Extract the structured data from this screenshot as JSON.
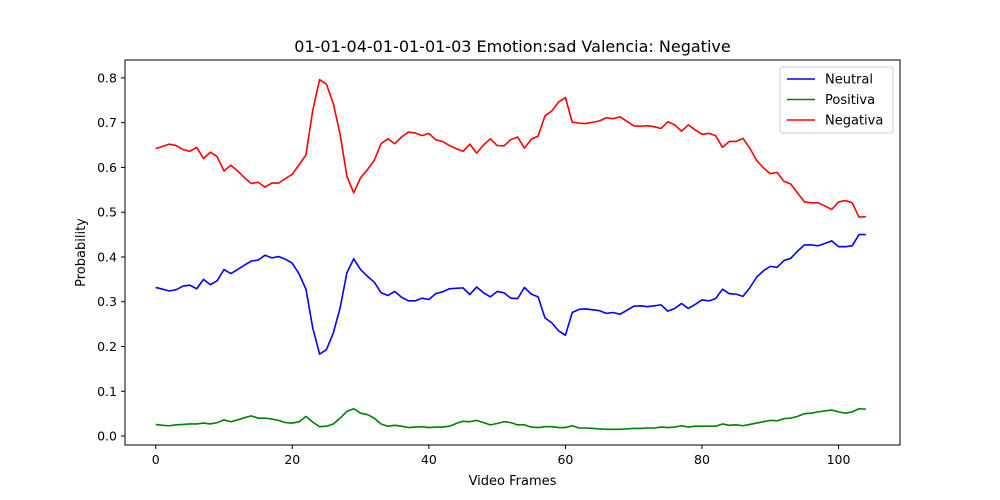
{
  "chart_data": {
    "type": "line",
    "title": "01-01-04-01-01-01-03 Emotion:sad Valencia: Negative",
    "xlabel": "Video Frames",
    "ylabel": "Probability",
    "xlim": [
      -4.5,
      109
    ],
    "ylim": [
      -0.02,
      0.84
    ],
    "xticks": [
      0,
      20,
      40,
      60,
      80,
      100
    ],
    "yticks": [
      0.0,
      0.1,
      0.2,
      0.3,
      0.4,
      0.5,
      0.6,
      0.7,
      0.8
    ],
    "ytick_labels": [
      "0.0",
      "0.1",
      "0.2",
      "0.3",
      "0.4",
      "0.5",
      "0.6",
      "0.7",
      "0.8"
    ],
    "grid": false,
    "legend_position": "top-right",
    "series": [
      {
        "name": "Neutral",
        "color": "#0000ff",
        "values": [
          0.332,
          0.328,
          0.324,
          0.327,
          0.335,
          0.337,
          0.329,
          0.35,
          0.338,
          0.347,
          0.372,
          0.363,
          0.372,
          0.382,
          0.391,
          0.393,
          0.404,
          0.398,
          0.401,
          0.395,
          0.386,
          0.362,
          0.328,
          0.241,
          0.183,
          0.193,
          0.23,
          0.286,
          0.365,
          0.396,
          0.372,
          0.357,
          0.344,
          0.32,
          0.314,
          0.323,
          0.31,
          0.302,
          0.302,
          0.308,
          0.305,
          0.318,
          0.322,
          0.329,
          0.33,
          0.331,
          0.316,
          0.333,
          0.32,
          0.311,
          0.323,
          0.32,
          0.308,
          0.307,
          0.332,
          0.317,
          0.311,
          0.264,
          0.253,
          0.235,
          0.225,
          0.276,
          0.283,
          0.284,
          0.282,
          0.28,
          0.274,
          0.276,
          0.272,
          0.281,
          0.29,
          0.291,
          0.289,
          0.291,
          0.293,
          0.279,
          0.285,
          0.296,
          0.285,
          0.294,
          0.304,
          0.302,
          0.307,
          0.328,
          0.318,
          0.317,
          0.312,
          0.331,
          0.355,
          0.369,
          0.379,
          0.377,
          0.392,
          0.397,
          0.413,
          0.427,
          0.427,
          0.425,
          0.43,
          0.436,
          0.423,
          0.423,
          0.425,
          0.45,
          0.45
        ]
      },
      {
        "name": "Positiva",
        "color": "#008000",
        "values": [
          0.026,
          0.024,
          0.023,
          0.025,
          0.026,
          0.027,
          0.027,
          0.029,
          0.027,
          0.03,
          0.036,
          0.032,
          0.036,
          0.041,
          0.045,
          0.04,
          0.04,
          0.038,
          0.035,
          0.03,
          0.029,
          0.032,
          0.044,
          0.031,
          0.021,
          0.022,
          0.027,
          0.04,
          0.055,
          0.061,
          0.051,
          0.048,
          0.04,
          0.027,
          0.022,
          0.024,
          0.022,
          0.019,
          0.02,
          0.021,
          0.019,
          0.02,
          0.02,
          0.022,
          0.028,
          0.033,
          0.032,
          0.035,
          0.03,
          0.025,
          0.028,
          0.032,
          0.03,
          0.025,
          0.025,
          0.02,
          0.019,
          0.021,
          0.021,
          0.019,
          0.019,
          0.023,
          0.018,
          0.018,
          0.017,
          0.016,
          0.015,
          0.015,
          0.015,
          0.016,
          0.017,
          0.017,
          0.018,
          0.018,
          0.02,
          0.019,
          0.02,
          0.023,
          0.02,
          0.022,
          0.022,
          0.022,
          0.022,
          0.027,
          0.024,
          0.025,
          0.023,
          0.026,
          0.029,
          0.032,
          0.035,
          0.034,
          0.039,
          0.04,
          0.044,
          0.05,
          0.051,
          0.054,
          0.056,
          0.058,
          0.054,
          0.051,
          0.054,
          0.061,
          0.06
        ]
      },
      {
        "name": "Negativa",
        "color": "#ff0000",
        "values": [
          0.642,
          0.647,
          0.652,
          0.649,
          0.64,
          0.636,
          0.645,
          0.62,
          0.634,
          0.624,
          0.592,
          0.605,
          0.592,
          0.577,
          0.564,
          0.567,
          0.556,
          0.565,
          0.565,
          0.575,
          0.585,
          0.606,
          0.628,
          0.728,
          0.796,
          0.786,
          0.743,
          0.674,
          0.58,
          0.543,
          0.577,
          0.595,
          0.616,
          0.653,
          0.664,
          0.653,
          0.668,
          0.679,
          0.677,
          0.671,
          0.676,
          0.662,
          0.658,
          0.649,
          0.642,
          0.636,
          0.652,
          0.632,
          0.65,
          0.664,
          0.649,
          0.648,
          0.662,
          0.668,
          0.643,
          0.663,
          0.67,
          0.715,
          0.726,
          0.746,
          0.756,
          0.701,
          0.699,
          0.698,
          0.701,
          0.704,
          0.711,
          0.709,
          0.713,
          0.703,
          0.693,
          0.692,
          0.693,
          0.691,
          0.687,
          0.702,
          0.695,
          0.681,
          0.695,
          0.684,
          0.674,
          0.676,
          0.671,
          0.645,
          0.658,
          0.658,
          0.665,
          0.643,
          0.616,
          0.599,
          0.586,
          0.589,
          0.569,
          0.563,
          0.543,
          0.523,
          0.521,
          0.521,
          0.514,
          0.506,
          0.523,
          0.526,
          0.521,
          0.489,
          0.49
        ]
      }
    ]
  }
}
